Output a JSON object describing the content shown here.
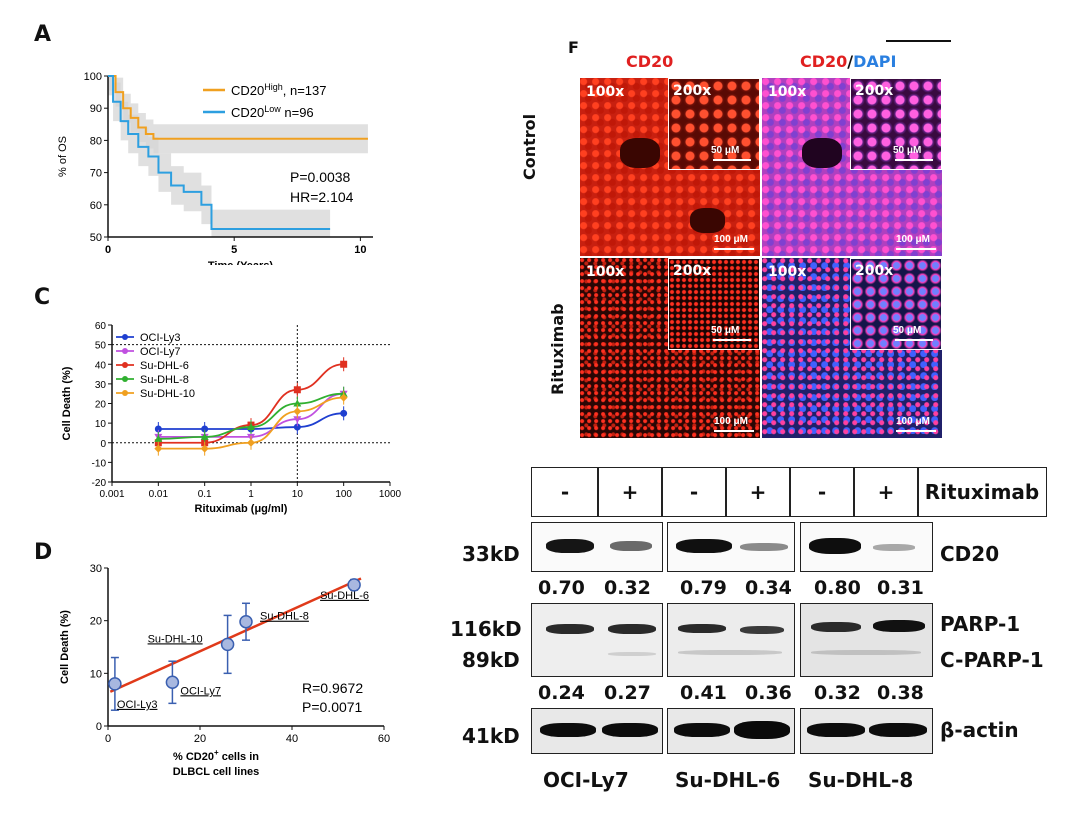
{
  "panels": {
    "a": "A",
    "c": "C",
    "d": "D",
    "f": "F"
  },
  "chart_data": [
    {
      "type": "line",
      "panel": "A",
      "xlabel": "Time (Years)",
      "ylabel": "% of OS",
      "xlim": [
        0,
        10.5
      ],
      "ylim": [
        50,
        100
      ],
      "xticks": [
        0,
        5,
        10
      ],
      "yticks": [
        50,
        60,
        70,
        80,
        90,
        100
      ],
      "legend_position": "top-right",
      "series": [
        {
          "name_main": "CD20",
          "name_sup": "High",
          "name_tail": ", n=137",
          "color": "#f0a020",
          "x": [
            0,
            0.3,
            0.6,
            0.9,
            1.2,
            1.5,
            1.8,
            2.5,
            10.3
          ],
          "y": [
            100,
            95,
            90,
            87,
            84,
            82,
            80.5,
            80.5,
            80.5
          ]
        },
        {
          "name_main": "CD20",
          "name_sup": "Low",
          "name_tail": " n=96",
          "color": "#2d9fe0",
          "x": [
            0,
            0.2,
            0.5,
            0.8,
            1.2,
            1.6,
            2.0,
            2.5,
            3.0,
            3.5,
            3.7,
            4.0,
            4.1,
            8.8
          ],
          "y": [
            100,
            92,
            86,
            82,
            78,
            75,
            70,
            66,
            64,
            64,
            60,
            60,
            52.5,
            52.5
          ]
        }
      ],
      "annotations": [
        "P=0.0038",
        "HR=2.104"
      ]
    },
    {
      "type": "line",
      "panel": "C",
      "xlabel": "Rituximab (μg/ml)",
      "ylabel": "Cell Death (%)",
      "x_scale": "log",
      "xlim": [
        0.001,
        1000
      ],
      "ylim": [
        -20,
        60
      ],
      "xticks": [
        "0.001",
        "0.01",
        "0.1",
        "1",
        "10",
        "100",
        "1000"
      ],
      "yticks": [
        -20,
        -10,
        0,
        10,
        20,
        30,
        40,
        50,
        60
      ],
      "legend_position": "top-left",
      "x": [
        0.01,
        0.1,
        1,
        10,
        100
      ],
      "series": [
        {
          "name": "OCI-Ly3",
          "color": "#1f3fd0",
          "marker": "circle",
          "values": [
            7,
            7,
            7,
            8,
            15
          ]
        },
        {
          "name": "OCI-Ly7",
          "color": "#c050e0",
          "marker": "triangle-down",
          "values": [
            3,
            3,
            3,
            12,
            25
          ]
        },
        {
          "name": "Su-DHL-6",
          "color": "#e03020",
          "marker": "square",
          "values": [
            0,
            0,
            9,
            27,
            40
          ]
        },
        {
          "name": "Su-DHL-8",
          "color": "#30b030",
          "marker": "triangle-up",
          "values": [
            2,
            3,
            8,
            20,
            25
          ]
        },
        {
          "name": "Su-DHL-10",
          "color": "#f0a020",
          "marker": "diamond",
          "values": [
            -3,
            -3,
            0,
            16,
            23
          ]
        }
      ]
    },
    {
      "type": "scatter",
      "panel": "D",
      "xlabel_line1": "%  CD20",
      "xlabel_sup": "+",
      "xlabel_line1_tail": " cells in",
      "xlabel_line2": "DLBCL cell lines",
      "ylabel": "Cell Death (%)",
      "xlim": [
        0,
        60
      ],
      "ylim": [
        0,
        30
      ],
      "xticks": [
        0,
        20,
        40,
        60
      ],
      "yticks": [
        0,
        10,
        20,
        30
      ],
      "points": [
        {
          "label": "OCI-Ly3",
          "x": 1.5,
          "y": 8,
          "err": 5
        },
        {
          "label": "OCI-Ly7",
          "x": 14,
          "y": 8.3,
          "err": 4
        },
        {
          "label": "Su-DHL-10",
          "x": 26,
          "y": 15.5,
          "err": 5.5
        },
        {
          "label": "Su-DHL-8",
          "x": 30,
          "y": 19.8,
          "err": 3.5
        },
        {
          "label": "Su-DHL-6",
          "x": 53.5,
          "y": 26.8,
          "err": 1
        }
      ],
      "fit": {
        "x": [
          0.5,
          55
        ],
        "y": [
          6.5,
          28
        ]
      },
      "annotations": [
        "R=0.9672",
        "P=0.0071"
      ]
    }
  ],
  "micrographs": {
    "col_cd20": "CD20",
    "col_merge_a": "CD20",
    "col_merge_sep": "/",
    "col_merge_b": "DAPI",
    "row_control": "Control",
    "row_rituximab": "Rituximab",
    "mag_low": "100x",
    "mag_high": "200x",
    "scale_small": "50 μM",
    "scale_large": "100 μM"
  },
  "western": {
    "treatment_label": "Rituximab",
    "signs": [
      "-",
      "+",
      "-",
      "+",
      "-",
      "+"
    ],
    "rows": [
      {
        "marker_kd": "33kD",
        "protein": "CD20",
        "quant": [
          "0.70",
          "0.32",
          "0.79",
          "0.34",
          "0.80",
          "0.31"
        ]
      },
      {
        "marker_kd": "116kD",
        "marker_kd2": "89kD",
        "protein": "PARP-1",
        "protein2": "C-PARP-1",
        "quant": [
          "0.24",
          "0.27",
          "0.41",
          "0.36",
          "0.32",
          "0.38"
        ]
      },
      {
        "marker_kd": "41kD",
        "protein": "β-actin"
      }
    ],
    "cell_lines": [
      "OCI-Ly7",
      "Su-DHL-6",
      "Su-DHL-8"
    ]
  }
}
